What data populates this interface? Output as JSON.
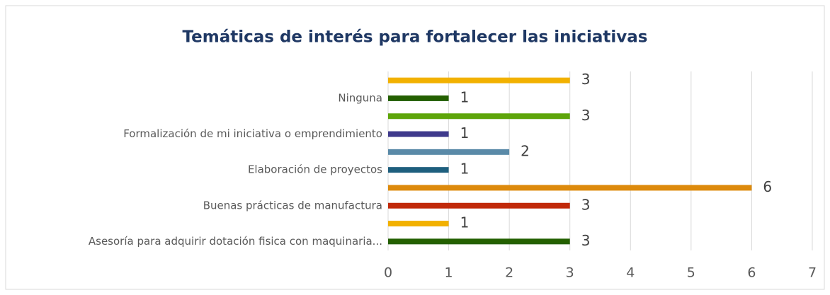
{
  "chart_data": {
    "type": "barh",
    "title": "Temáticas de interés para fortalecer las iniciativas",
    "categories": [
      null,
      "Ninguna",
      null,
      "Formalización de mi iniciativa o emprendimiento",
      null,
      "Elaboración de proyectos",
      null,
      "Buenas prácticas de manufactura",
      null,
      "Asesoría para adquirir dotación fisica con maquinaria..."
    ],
    "values": [
      3,
      1,
      3,
      1,
      2,
      1,
      6,
      3,
      1,
      3
    ],
    "colors": [
      "#f2b100",
      "#246000",
      "#5ea50a",
      "#3f3a8c",
      "#5a8aa8",
      "#1e5f7e",
      "#dd8a0c",
      "#c1290a",
      "#f2b100",
      "#246000"
    ],
    "xlim": [
      0,
      7
    ],
    "xticks": [
      0,
      1,
      2,
      3,
      4,
      5,
      6,
      7
    ],
    "grid": true
  }
}
